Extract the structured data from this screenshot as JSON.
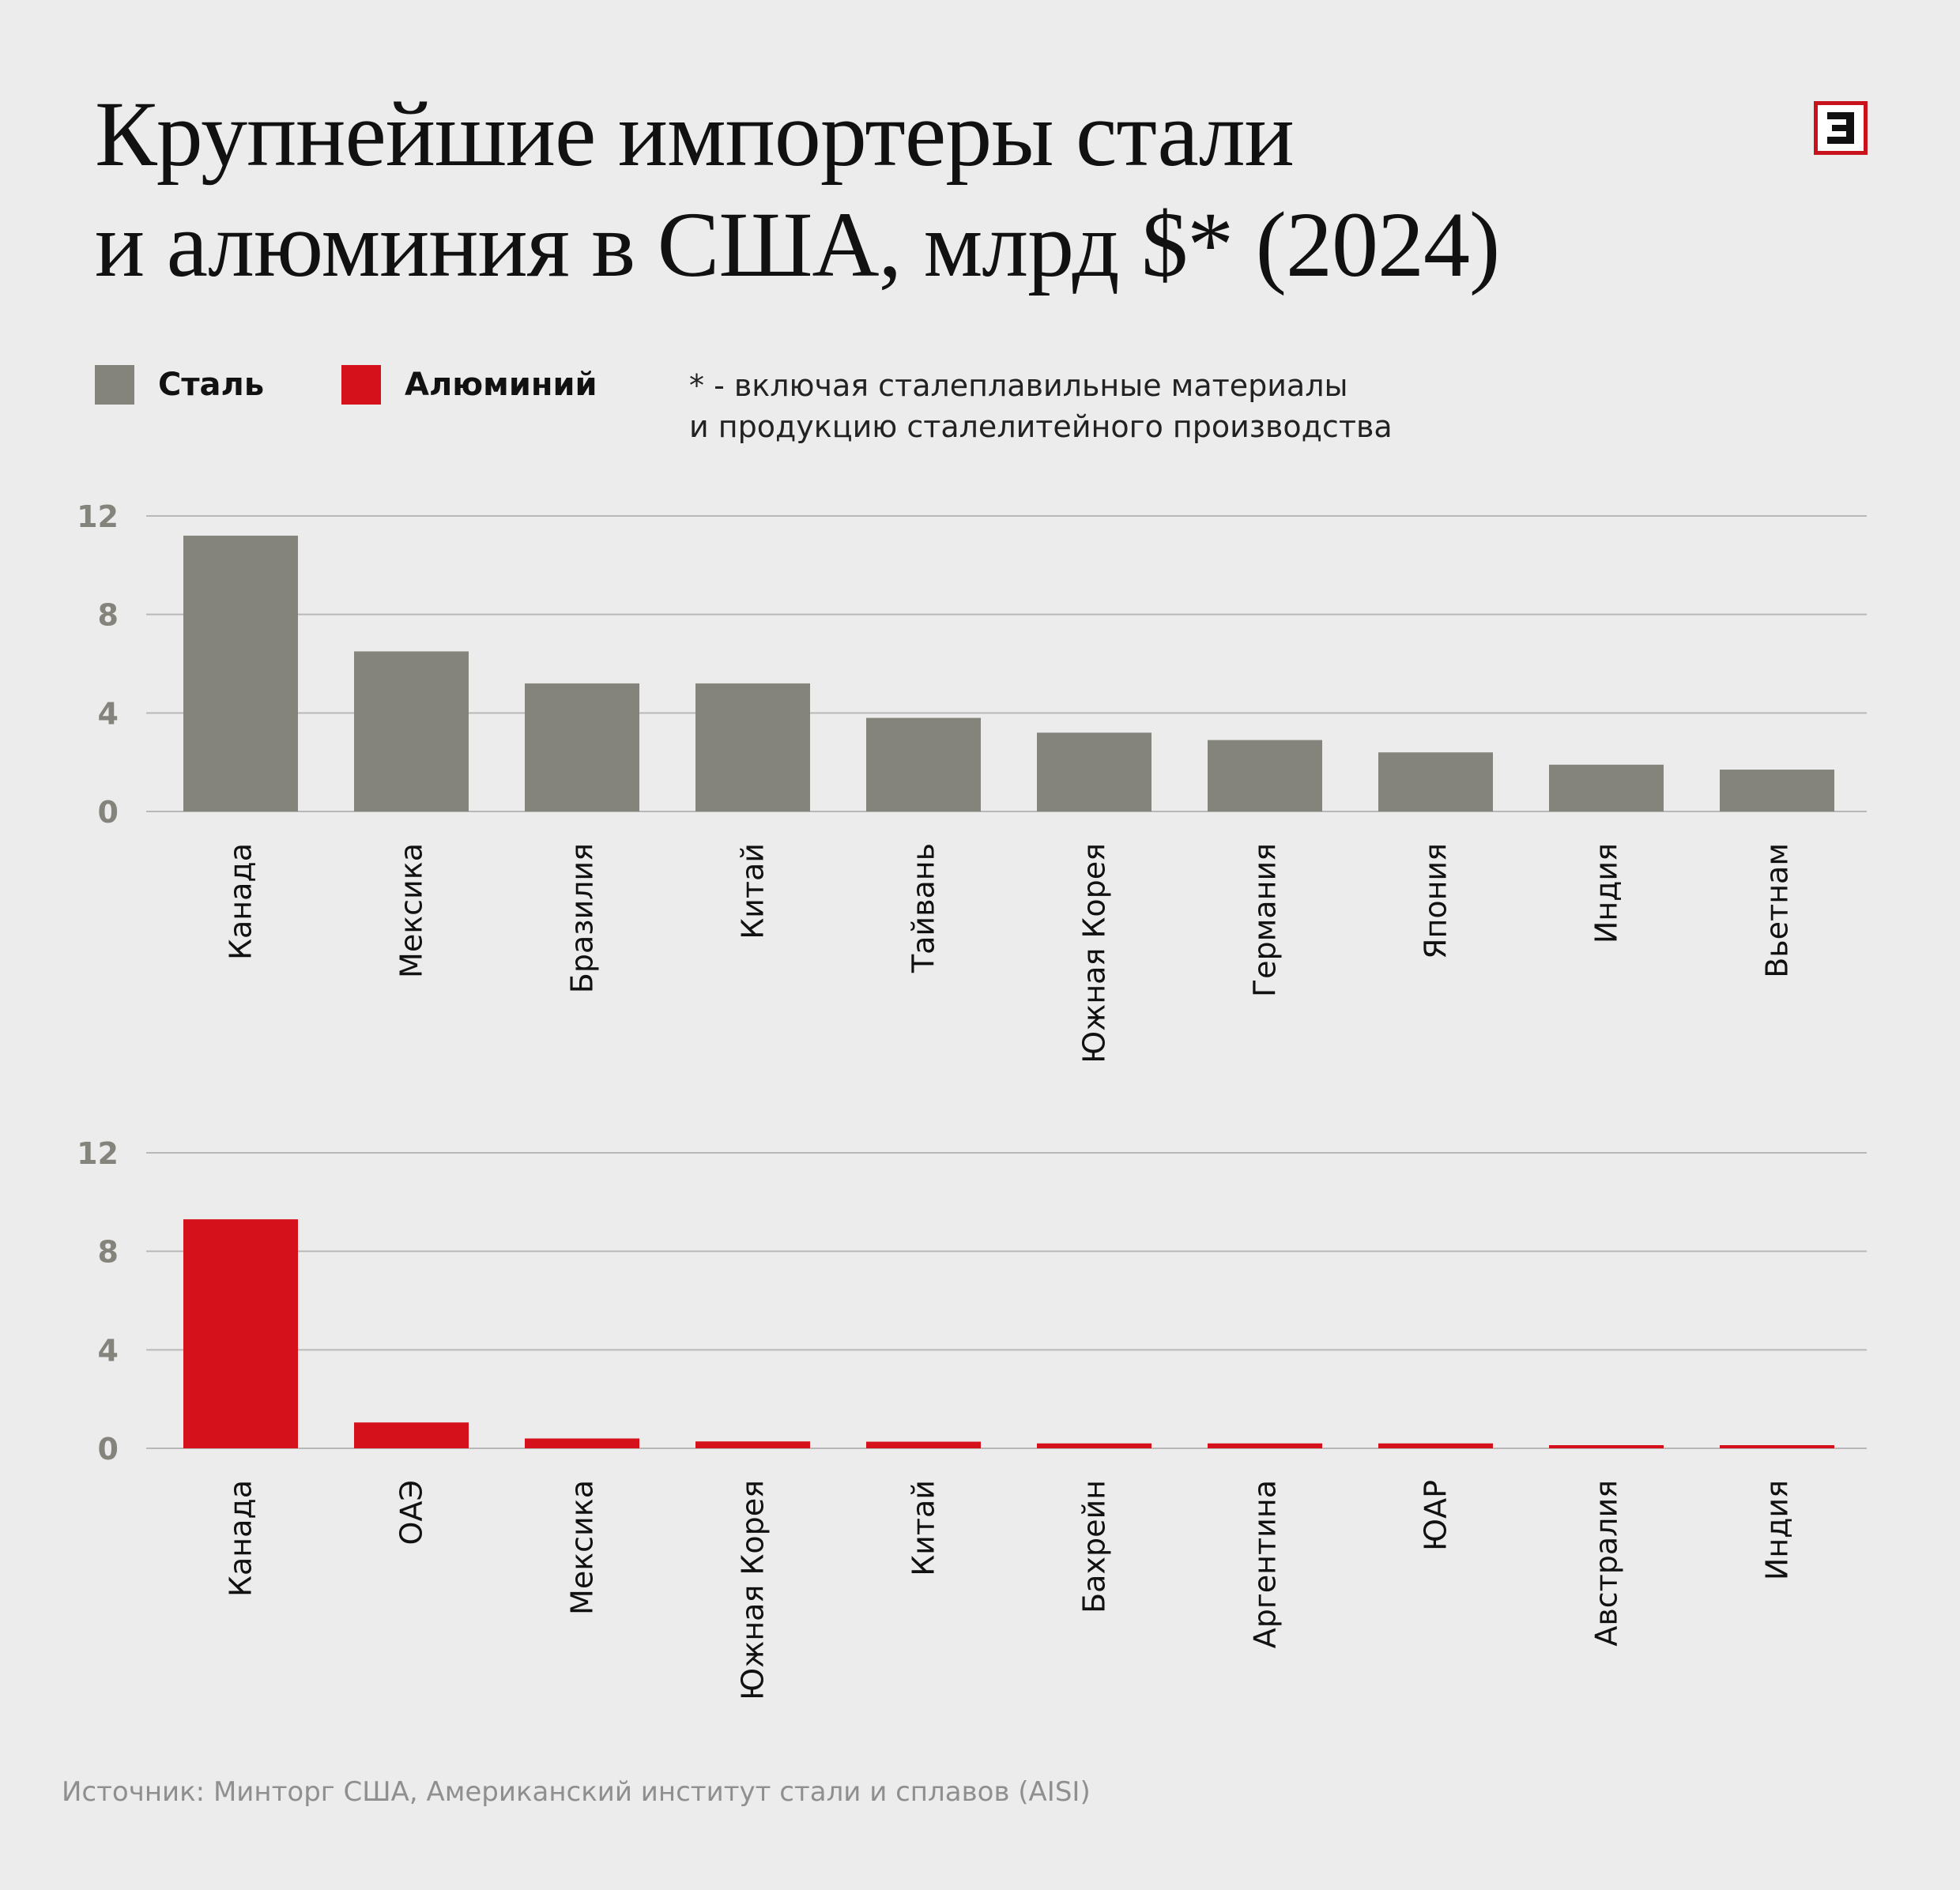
{
  "title": {
    "line1": "Крупнейшие импортеры стали",
    "line2": "и алюминия в США, млрд $* (2024)"
  },
  "logo": {
    "icon": "e-letter-logo-icon"
  },
  "legend": {
    "steel_label": "Сталь",
    "aluminum_label": "Алюминий"
  },
  "footnote": {
    "line1": "* - включая сталеплавильные материалы",
    "line2": "и продукцию сталелитейного производства"
  },
  "colors": {
    "steel": "#85847c",
    "aluminum": "#d5121c",
    "grid": "#b8b8b8",
    "tick_text": "#85847c",
    "background": "#ececec"
  },
  "chart_data": [
    {
      "type": "bar",
      "series": [
        {
          "name": "Сталь",
          "values": [
            11.2,
            6.5,
            5.2,
            5.2,
            3.8,
            3.2,
            2.9,
            2.4,
            1.9,
            1.7
          ]
        }
      ],
      "categories": [
        "Канада",
        "Мексика",
        "Бразилия",
        "Китай",
        "Тайвань",
        "Южная Корея",
        "Германия",
        "Япония",
        "Индия",
        "Вьетнам"
      ],
      "yticks": [
        0,
        4,
        8,
        12
      ],
      "ylim": [
        0,
        12
      ],
      "grid": true
    },
    {
      "type": "bar",
      "series": [
        {
          "name": "Алюминий",
          "values": [
            9.3,
            1.05,
            0.4,
            0.28,
            0.27,
            0.2,
            0.2,
            0.2,
            0.12,
            0.12
          ]
        }
      ],
      "categories": [
        "Канада",
        "ОАЭ",
        "Мексика",
        "Южная Корея",
        "Китай",
        "Бахрейн",
        "Аргентина",
        "ЮАР",
        "Австралия",
        "Индия"
      ],
      "yticks": [
        0,
        4,
        8,
        12
      ],
      "ylim": [
        0,
        12
      ],
      "grid": true
    }
  ],
  "source": "Источник: Минторг США, Американский институт стали и сплавов (AISI)"
}
